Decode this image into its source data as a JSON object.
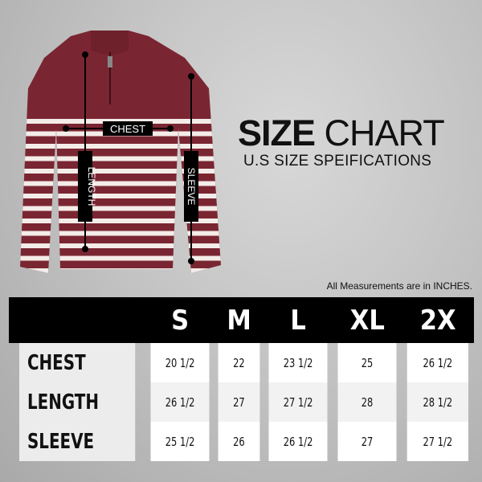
{
  "diagram_labels": {
    "chest": "CHEST",
    "length": "LENGTH",
    "sleeve": "SLEEVE"
  },
  "title": {
    "bold": "SIZE",
    "light": "CHART",
    "subtitle": "U.S SIZE SPEIFICATIONS"
  },
  "note": "All Measurements are in INCHES.",
  "colors": {
    "sweater": "#7a2632",
    "stripe": "#f4ece8",
    "header": "#000000"
  },
  "table": {
    "sizes": [
      "S",
      "M",
      "L",
      "XL",
      "2X"
    ],
    "rows": [
      {
        "label": "CHEST",
        "values": [
          "20 1/2",
          "22",
          "23 1/2",
          "25",
          "26 1/2"
        ]
      },
      {
        "label": "LENGTH",
        "values": [
          "26 1/2",
          "27",
          "27 1/2",
          "28",
          "28 1/2"
        ]
      },
      {
        "label": "SLEEVE",
        "values": [
          "25 1/2",
          "26",
          "26 1/2",
          "27",
          "27 1/2"
        ]
      }
    ]
  }
}
